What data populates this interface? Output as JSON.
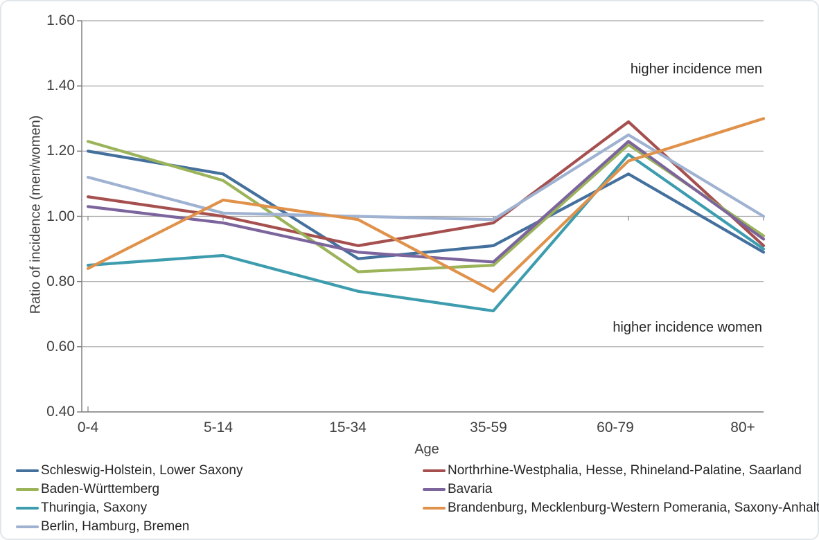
{
  "chart_data": {
    "type": "line",
    "title": "",
    "xlabel": "Age",
    "ylabel": "Ratio of incidence (men/women)",
    "ylim": [
      0.4,
      1.6
    ],
    "yticks": [
      "1.60",
      "1.40",
      "1.20",
      "1.00",
      "0.80",
      "0.60",
      "0.40"
    ],
    "categories": [
      "0-4",
      "5-14",
      "15-34",
      "35-59",
      "60-79",
      "80+"
    ],
    "series": [
      {
        "id": "schleswig-holstein-lower-saxony",
        "name": "Schleswig-Holstein, Lower Saxony",
        "color": "#44709D",
        "values": [
          1.2,
          1.13,
          0.87,
          0.91,
          1.13,
          0.89
        ]
      },
      {
        "id": "northrhine-westphalia-hesse-rhineland-palatine-saarland",
        "name": "Northrhine-Westphalia, Hesse, Rhineland-Palatine, Saarland",
        "color": "#A5504E",
        "values": [
          1.06,
          1.0,
          0.91,
          0.98,
          1.29,
          0.91
        ]
      },
      {
        "id": "baden-wuerttemberg",
        "name": "Baden-Württemberg",
        "color": "#9BB45A",
        "values": [
          1.23,
          1.11,
          0.83,
          0.85,
          1.22,
          0.94
        ]
      },
      {
        "id": "bavaria",
        "name": "Bavaria",
        "color": "#7C649C",
        "values": [
          1.03,
          0.98,
          0.89,
          0.86,
          1.23,
          0.93
        ]
      },
      {
        "id": "thuringia-saxony",
        "name": "Thuringia, Saxony",
        "color": "#3D9DAE",
        "values": [
          0.85,
          0.88,
          0.77,
          0.71,
          1.19,
          0.9
        ]
      },
      {
        "id": "brandenburg-mecklenburg-western-pomerania-saxony-anhalt",
        "name": "Brandenburg, Mecklenburg-Western Pomerania,  Saxony-Anhalt",
        "color": "#E0924B",
        "values": [
          0.84,
          1.05,
          0.99,
          0.77,
          1.17,
          1.3
        ]
      },
      {
        "id": "berlin-hamburg-bremen",
        "name": "Berlin, Hamburg, Bremen",
        "color": "#9FB2D1",
        "values": [
          1.12,
          1.01,
          1.0,
          0.99,
          1.25,
          1.0
        ]
      }
    ],
    "annotations": {
      "upper": "higher incidence men",
      "lower": "higher incidence women"
    },
    "layout": {
      "grid": true,
      "grid_color": "#A8A8A8",
      "axis_color": "#808080",
      "legend_position": "bottom-two-columns",
      "legend_columns": [
        [
          0,
          2,
          4,
          6
        ],
        [
          1,
          3,
          5
        ]
      ],
      "draw_order": [
        0,
        1,
        2,
        3,
        4,
        6,
        5
      ]
    }
  }
}
